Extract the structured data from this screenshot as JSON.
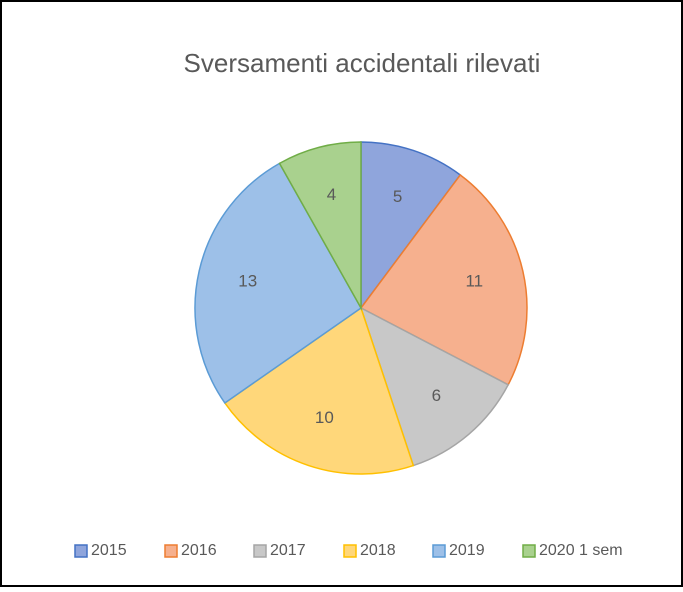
{
  "chart_data": {
    "type": "pie",
    "title": "Sversamenti accidentali rilevati",
    "categories": [
      "2015",
      "2016",
      "2017",
      "2018",
      "2019",
      "2020 1 sem"
    ],
    "values": [
      5,
      11,
      6,
      10,
      13,
      4
    ],
    "colors": [
      "#8fa5dc",
      "#f6b08e",
      "#c8c8c8",
      "#ffd77a",
      "#9dc0e8",
      "#a9d18e"
    ],
    "edge_colors": [
      "#4472c4",
      "#ed7d31",
      "#a5a5a5",
      "#ffc000",
      "#5b9bd5",
      "#70ad47"
    ],
    "legend": "bottom"
  }
}
